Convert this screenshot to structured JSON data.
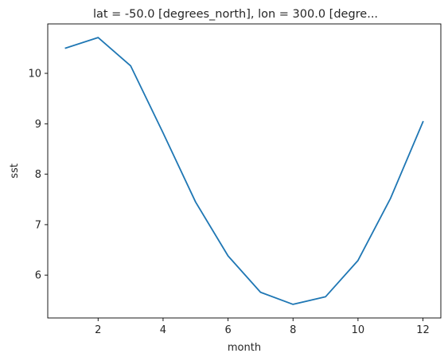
{
  "chart_data": {
    "type": "line",
    "title": "lat = -50.0 [degrees_north], lon = 300.0 [degre...",
    "xlabel": "month",
    "ylabel": "sst",
    "x": [
      1,
      2,
      3,
      4,
      5,
      6,
      7,
      8,
      9,
      10,
      11,
      12
    ],
    "series": [
      {
        "values": [
          10.5,
          10.71,
          10.15,
          8.82,
          7.45,
          6.38,
          5.66,
          5.42,
          5.57,
          6.29,
          7.52,
          9.04
        ],
        "color": "#1f77b4"
      }
    ],
    "xlim": [
      0.45,
      12.55
    ],
    "ylim": [
      5.15,
      10.98
    ],
    "xticks": [
      2,
      4,
      6,
      8,
      10,
      12
    ],
    "yticks": [
      6,
      7,
      8,
      9,
      10
    ],
    "grid": false,
    "legend": "none"
  }
}
